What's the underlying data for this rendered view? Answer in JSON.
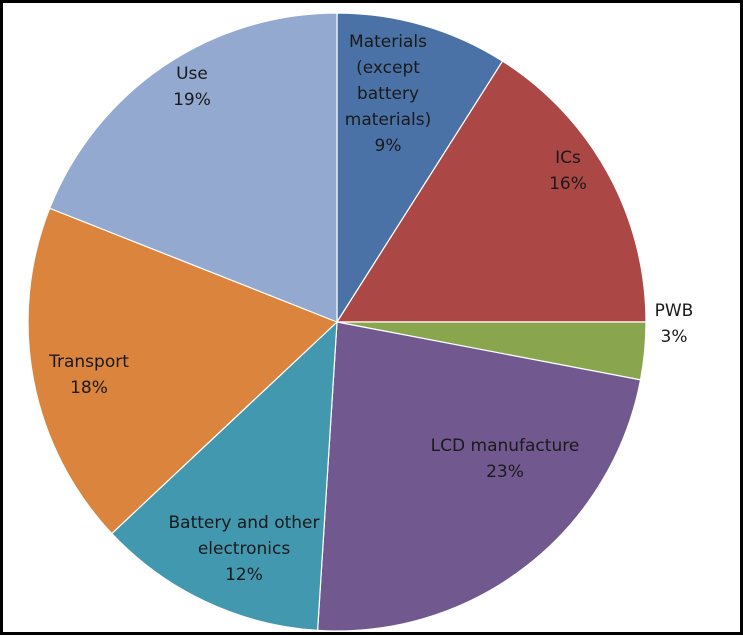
{
  "chart_data": {
    "type": "pie",
    "title": "",
    "start_angle_deg": 0,
    "direction": "clockwise",
    "slices": [
      {
        "label_lines": [
          "Materials",
          "(except",
          "battery",
          "materials)"
        ],
        "name": "Materials (except battery materials)",
        "value": 9,
        "value_label": "9%",
        "color": "#4a72a7"
      },
      {
        "label_lines": [
          "ICs"
        ],
        "name": "ICs",
        "value": 16,
        "value_label": "16%",
        "color": "#ab4744"
      },
      {
        "label_lines": [
          "PWB"
        ],
        "name": "PWB",
        "value": 3,
        "value_label": "3%",
        "color": "#89a54e"
      },
      {
        "label_lines": [
          "LCD manufacture"
        ],
        "name": "LCD manufacture",
        "value": 23,
        "value_label": "23%",
        "color": "#71588f"
      },
      {
        "label_lines": [
          "Battery and other",
          "electronics"
        ],
        "name": "Battery and other electronics",
        "value": 12,
        "value_label": "12%",
        "color": "#4198af"
      },
      {
        "label_lines": [
          "Transport"
        ],
        "name": "Transport",
        "value": 18,
        "value_label": "18%",
        "color": "#db843d"
      },
      {
        "label_lines": [
          "Use"
        ],
        "name": "Use",
        "value": 19,
        "value_label": "19%",
        "color": "#93a9cf"
      }
    ]
  }
}
